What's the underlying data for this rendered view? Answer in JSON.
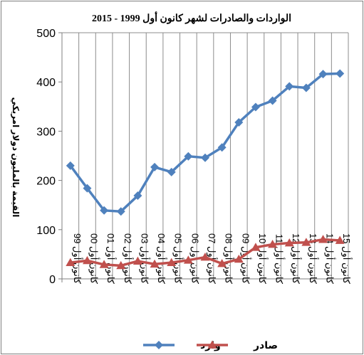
{
  "chart_data": {
    "type": "line",
    "title": "الواردات والصادرات لشهر كانون أول 1999 - 2015",
    "ylabel": "القيمة بالمليون دولار امريكي",
    "xlabel": "",
    "ylim": [
      0,
      500
    ],
    "yticks": [
      0,
      100,
      200,
      300,
      400,
      500
    ],
    "grid": "vertical",
    "legend_position": "bottom",
    "categories": [
      "كانون أول 99",
      "كانون أول 00",
      "كانون أول 01",
      "كانون أول 02",
      "كانون أول 03",
      "كانون أول 04",
      "كانون أول 05",
      "كانون أول 06",
      "كانون أول 07",
      "كانون أول 08",
      "كانون أول 09",
      "كانون أول 10",
      "كانون أول 11",
      "كانون أول 12",
      "كانون أول 13",
      "كانون أول 14",
      "كانون أول 15"
    ],
    "series": [
      {
        "name": "وارد",
        "color": "#4f81bd",
        "marker": "diamond",
        "values": [
          230,
          184,
          139,
          137,
          169,
          227,
          217,
          249,
          246,
          267,
          318,
          349,
          362,
          391,
          388,
          416,
          417
        ]
      },
      {
        "name": "صادر",
        "color": "#c0504d",
        "marker": "triangle",
        "values": [
          33,
          37,
          29,
          27,
          36,
          30,
          33,
          38,
          44,
          31,
          40,
          64,
          70,
          73,
          74,
          80,
          78
        ]
      }
    ]
  }
}
